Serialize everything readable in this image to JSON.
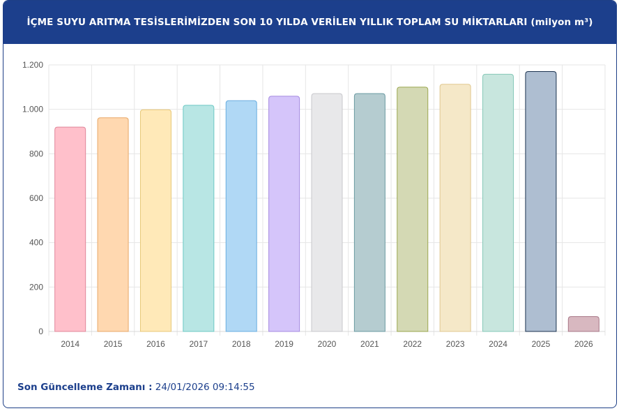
{
  "header": {
    "title": "İÇME SUYU ARITMA TESİSLERİMİZDEN SON 10 YILDA VERİLEN YILLIK TOPLAM SU MİKTARLARI (milyon m³)"
  },
  "footer": {
    "label": "Son Güncelleme Zamanı :",
    "value": " 24/01/2026 09:14:55"
  },
  "chart_data": {
    "type": "bar",
    "title": "İÇME SUYU ARITMA TESİSLERİMİZDEN SON 10 YILDA VERİLEN YILLIK TOPLAM SU MİKTARLARI (milyon m³)",
    "categories": [
      "2014",
      "2015",
      "2016",
      "2017",
      "2018",
      "2019",
      "2020",
      "2021",
      "2022",
      "2023",
      "2024",
      "2025",
      "2026"
    ],
    "values": [
      920,
      962,
      998,
      1018,
      1039,
      1059,
      1071,
      1071,
      1100,
      1113,
      1158,
      1170,
      67
    ],
    "ylim": [
      0,
      1200
    ],
    "yticks": [
      0,
      200,
      400,
      600,
      800,
      1000,
      1200
    ],
    "ytick_labels": [
      "0",
      "200",
      "400",
      "600",
      "800",
      "1.000",
      "1.200"
    ],
    "grid": true,
    "legend": "none",
    "colors": {
      "fills": [
        "#ffc0cb",
        "#ffd8b0",
        "#ffe9b8",
        "#b8e6e4",
        "#b0d8f5",
        "#d5c5fa",
        "#e8e8ea",
        "#b5ccd0",
        "#d4d9b4",
        "#f5e8c8",
        "#c8e6de",
        "#aebed1",
        "#d8b8c0"
      ],
      "strokes": [
        "#e0869a",
        "#e8a868",
        "#e8c878",
        "#6cc8c4",
        "#6aaee0",
        "#a58ae0",
        "#c8c8cc",
        "#6a9aa2",
        "#9aa64e",
        "#e0c890",
        "#86c8b8",
        "#1c3350",
        "#a87888"
      ],
      "grid": "#e6e6e6",
      "axis_text": "#555555"
    }
  }
}
